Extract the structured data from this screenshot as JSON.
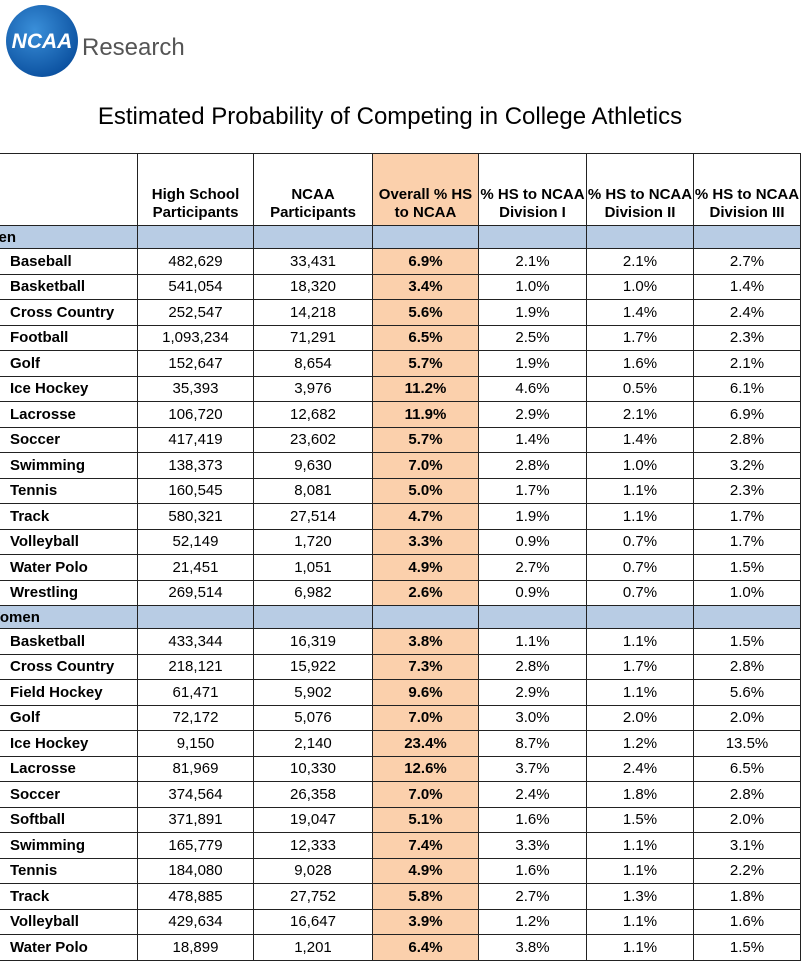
{
  "header": {
    "logo": "NCAA",
    "brand": "Research",
    "title": "Estimated Probability of Competing in College Athletics"
  },
  "table": {
    "columns": [
      "High School Participants",
      "NCAA Participants",
      "Overall % HS to NCAA",
      "% HS to NCAA Division I",
      "% HS to NCAA Division II",
      "% HS to NCAA Division III"
    ],
    "sections": [
      {
        "label": "Men",
        "rows": [
          [
            "Baseball",
            "482,629",
            "33,431",
            "6.9%",
            "2.1%",
            "2.1%",
            "2.7%"
          ],
          [
            "Basketball",
            "541,054",
            "18,320",
            "3.4%",
            "1.0%",
            "1.0%",
            "1.4%"
          ],
          [
            "Cross Country",
            "252,547",
            "14,218",
            "5.6%",
            "1.9%",
            "1.4%",
            "2.4%"
          ],
          [
            "Football",
            "1,093,234",
            "71,291",
            "6.5%",
            "2.5%",
            "1.7%",
            "2.3%"
          ],
          [
            "Golf",
            "152,647",
            "8,654",
            "5.7%",
            "1.9%",
            "1.6%",
            "2.1%"
          ],
          [
            "Ice Hockey",
            "35,393",
            "3,976",
            "11.2%",
            "4.6%",
            "0.5%",
            "6.1%"
          ],
          [
            "Lacrosse",
            "106,720",
            "12,682",
            "11.9%",
            "2.9%",
            "2.1%",
            "6.9%"
          ],
          [
            "Soccer",
            "417,419",
            "23,602",
            "5.7%",
            "1.4%",
            "1.4%",
            "2.8%"
          ],
          [
            "Swimming",
            "138,373",
            "9,630",
            "7.0%",
            "2.8%",
            "1.0%",
            "3.2%"
          ],
          [
            "Tennis",
            "160,545",
            "8,081",
            "5.0%",
            "1.7%",
            "1.1%",
            "2.3%"
          ],
          [
            "Track",
            "580,321",
            "27,514",
            "4.7%",
            "1.9%",
            "1.1%",
            "1.7%"
          ],
          [
            "Volleyball",
            "52,149",
            "1,720",
            "3.3%",
            "0.9%",
            "0.7%",
            "1.7%"
          ],
          [
            "Water Polo",
            "21,451",
            "1,051",
            "4.9%",
            "2.7%",
            "0.7%",
            "1.5%"
          ],
          [
            "Wrestling",
            "269,514",
            "6,982",
            "2.6%",
            "0.9%",
            "0.7%",
            "1.0%"
          ]
        ]
      },
      {
        "label": "Women",
        "rows": [
          [
            "Basketball",
            "433,344",
            "16,319",
            "3.8%",
            "1.1%",
            "1.1%",
            "1.5%"
          ],
          [
            "Cross Country",
            "218,121",
            "15,922",
            "7.3%",
            "2.8%",
            "1.7%",
            "2.8%"
          ],
          [
            "Field Hockey",
            "61,471",
            "5,902",
            "9.6%",
            "2.9%",
            "1.1%",
            "5.6%"
          ],
          [
            "Golf",
            "72,172",
            "5,076",
            "7.0%",
            "3.0%",
            "2.0%",
            "2.0%"
          ],
          [
            "Ice Hockey",
            "9,150",
            "2,140",
            "23.4%",
            "8.7%",
            "1.2%",
            "13.5%"
          ],
          [
            "Lacrosse",
            "81,969",
            "10,330",
            "12.6%",
            "3.7%",
            "2.4%",
            "6.5%"
          ],
          [
            "Soccer",
            "374,564",
            "26,358",
            "7.0%",
            "2.4%",
            "1.8%",
            "2.8%"
          ],
          [
            "Softball",
            "371,891",
            "19,047",
            "5.1%",
            "1.6%",
            "1.5%",
            "2.0%"
          ],
          [
            "Swimming",
            "165,779",
            "12,333",
            "7.4%",
            "3.3%",
            "1.1%",
            "3.1%"
          ],
          [
            "Tennis",
            "184,080",
            "9,028",
            "4.9%",
            "1.6%",
            "1.1%",
            "2.2%"
          ],
          [
            "Track",
            "478,885",
            "27,752",
            "5.8%",
            "2.7%",
            "1.3%",
            "1.8%"
          ],
          [
            "Volleyball",
            "429,634",
            "16,647",
            "3.9%",
            "1.2%",
            "1.1%",
            "1.6%"
          ],
          [
            "Water Polo",
            "18,899",
            "1,201",
            "6.4%",
            "3.8%",
            "1.1%",
            "1.5%"
          ]
        ]
      }
    ]
  }
}
